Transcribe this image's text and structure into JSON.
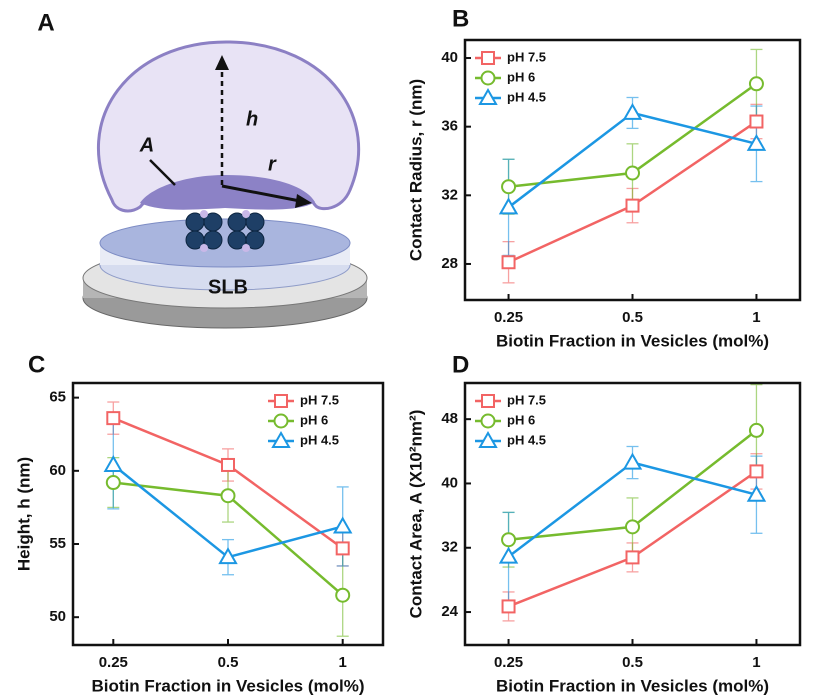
{
  "diagram": {
    "panel_label": "A",
    "height_label": "h",
    "radius_label": "r",
    "area_label": "A",
    "bilayer_label": "SLB"
  },
  "chart_data": [
    {
      "type": "line",
      "panel_label": "B",
      "xlabel": "Biotin Fraction in Vesicles (mol%)",
      "ylabel": "Contact Radius, r (nm)",
      "categories": [
        "0.25",
        "0.5",
        "1"
      ],
      "ylim": [
        25.9,
        41.05
      ],
      "yticks": [
        28,
        32,
        36,
        40
      ],
      "legend": "upper left",
      "series": [
        {
          "name": "pH 7.5",
          "color": "#f26464",
          "marker": "square",
          "values": [
            28.1,
            31.4,
            36.3
          ],
          "errors": [
            1.2,
            1.0,
            1.0
          ]
        },
        {
          "name": "pH 6",
          "color": "#76bb2e",
          "marker": "circle",
          "values": [
            32.5,
            33.3,
            38.5
          ],
          "errors": [
            1.6,
            1.7,
            2.0
          ]
        },
        {
          "name": "pH 4.5",
          "color": "#1c97e3",
          "marker": "triangle",
          "values": [
            31.3,
            36.8,
            35.0
          ],
          "errors": [
            2.8,
            0.9,
            2.2
          ]
        }
      ]
    },
    {
      "type": "line",
      "panel_label": "C",
      "xlabel": "Biotin Fraction in Vesicles (mol%)",
      "ylabel": "Height, h (nm)",
      "categories": [
        "0.25",
        "0.5",
        "1"
      ],
      "ylim": [
        48.1,
        66.0
      ],
      "yticks": [
        50,
        55,
        60,
        65
      ],
      "legend": "upper right",
      "series": [
        {
          "name": "pH 7.5",
          "color": "#f26464",
          "marker": "square",
          "values": [
            63.6,
            60.4,
            54.7
          ],
          "errors": [
            1.1,
            1.1,
            1.2
          ]
        },
        {
          "name": "pH 6",
          "color": "#76bb2e",
          "marker": "circle",
          "values": [
            59.2,
            58.3,
            51.5
          ],
          "errors": [
            1.7,
            1.8,
            2.8
          ]
        },
        {
          "name": "pH 4.5",
          "color": "#1c97e3",
          "marker": "triangle",
          "values": [
            60.4,
            54.1,
            56.2
          ],
          "errors": [
            3.0,
            1.2,
            2.7
          ]
        }
      ]
    },
    {
      "type": "line",
      "panel_label": "D",
      "xlabel": "Biotin Fraction in Vesicles (mol%)",
      "ylabel": "Contact Area, A (X10²nm²)",
      "categories": [
        "0.25",
        "0.5",
        "1"
      ],
      "ylim": [
        19.9,
        52.5
      ],
      "yticks": [
        24,
        32,
        40,
        48
      ],
      "legend": "upper left",
      "series": [
        {
          "name": "pH 7.5",
          "color": "#f26464",
          "marker": "square",
          "values": [
            24.7,
            30.8,
            41.5
          ],
          "errors": [
            1.8,
            1.8,
            2.2
          ]
        },
        {
          "name": "pH 6",
          "color": "#76bb2e",
          "marker": "circle",
          "values": [
            33.0,
            34.6,
            46.6
          ],
          "errors": [
            3.4,
            3.6,
            5.7
          ]
        },
        {
          "name": "pH 4.5",
          "color": "#1c97e3",
          "marker": "triangle",
          "values": [
            30.9,
            42.6,
            38.6
          ],
          "errors": [
            5.5,
            2.0,
            4.8
          ]
        }
      ]
    }
  ]
}
